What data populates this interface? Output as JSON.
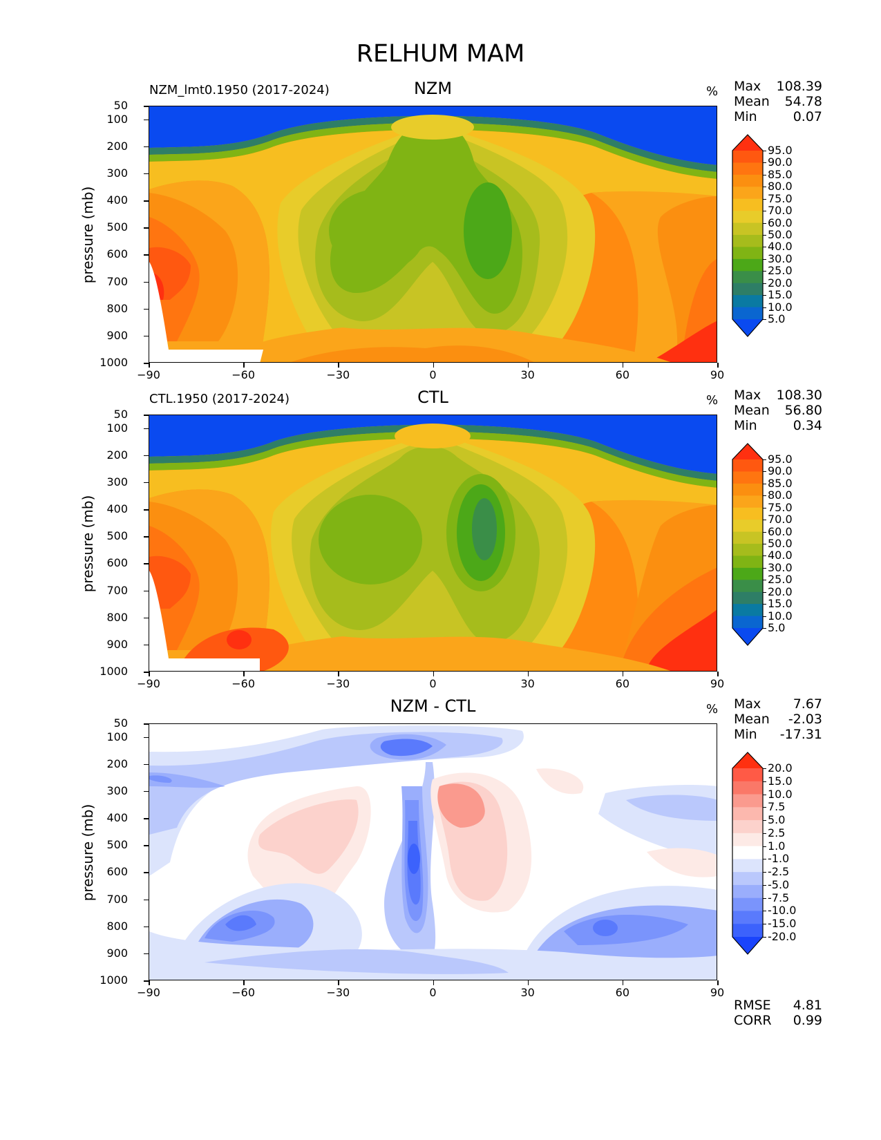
{
  "figure_title": "RELHUM MAM",
  "chart_data": [
    {
      "type": "heatmap",
      "title": "NZM",
      "left_title": "NZM_lmt0.1950 (2017-2024)",
      "units": "%",
      "xlabel": "",
      "ylabel": "pressure (mb)",
      "xlim": [
        -90,
        90
      ],
      "ylim": [
        1000,
        50
      ],
      "x_ticks": [
        "−90",
        "−60",
        "−30",
        "0",
        "30",
        "60",
        "90"
      ],
      "x_tick_values": [
        -90,
        -60,
        -30,
        0,
        30,
        60,
        90
      ],
      "y_ticks": [
        "50",
        "100",
        "200",
        "300",
        "400",
        "500",
        "600",
        "700",
        "800",
        "900",
        "1000"
      ],
      "y_tick_values": [
        50,
        100,
        200,
        300,
        400,
        500,
        600,
        700,
        800,
        900,
        1000
      ],
      "stats": [
        {
          "label": "Max",
          "value": "108.39"
        },
        {
          "label": "Mean",
          "value": "54.78"
        },
        {
          "label": "Min",
          "value": "0.07"
        }
      ],
      "colorbar_levels": [
        "95.0",
        "90.0",
        "85.0",
        "80.0",
        "75.0",
        "70.0",
        "60.0",
        "50.0",
        "40.0",
        "30.0",
        "25.0",
        "20.0",
        "15.0",
        "10.0",
        "5.0"
      ],
      "colorbar_colors": [
        "#ff3010",
        "#ff5810",
        "#ff7510",
        "#fb8f10",
        "#fba51a",
        "#f7be20",
        "#e8cc2a",
        "#c8c424",
        "#a6bc1c",
        "#80b414",
        "#4ca818",
        "#3a8e48",
        "#2e7e66",
        "#0a7aa2",
        "#0a66d0",
        "#0a4af0"
      ]
    },
    {
      "type": "heatmap",
      "title": "CTL",
      "left_title": "CTL.1950 (2017-2024)",
      "units": "%",
      "xlabel": "",
      "ylabel": "pressure (mb)",
      "xlim": [
        -90,
        90
      ],
      "ylim": [
        1000,
        50
      ],
      "x_ticks": [
        "−90",
        "−60",
        "−30",
        "0",
        "30",
        "60",
        "90"
      ],
      "x_tick_values": [
        -90,
        -60,
        -30,
        0,
        30,
        60,
        90
      ],
      "y_ticks": [
        "50",
        "100",
        "200",
        "300",
        "400",
        "500",
        "600",
        "700",
        "800",
        "900",
        "1000"
      ],
      "y_tick_values": [
        50,
        100,
        200,
        300,
        400,
        500,
        600,
        700,
        800,
        900,
        1000
      ],
      "stats": [
        {
          "label": "Max",
          "value": "108.30"
        },
        {
          "label": "Mean",
          "value": "56.80"
        },
        {
          "label": "Min",
          "value": "0.34"
        }
      ],
      "colorbar_levels": [
        "95.0",
        "90.0",
        "85.0",
        "80.0",
        "75.0",
        "70.0",
        "60.0",
        "50.0",
        "40.0",
        "30.0",
        "25.0",
        "20.0",
        "15.0",
        "10.0",
        "5.0"
      ],
      "colorbar_colors": [
        "#ff3010",
        "#ff5810",
        "#ff7510",
        "#fb8f10",
        "#fba51a",
        "#f7be20",
        "#e8cc2a",
        "#c8c424",
        "#a6bc1c",
        "#80b414",
        "#4ca818",
        "#3a8e48",
        "#2e7e66",
        "#0a7aa2",
        "#0a66d0",
        "#0a4af0"
      ]
    },
    {
      "type": "heatmap",
      "title": "NZM - CTL",
      "left_title": "",
      "units": "%",
      "xlabel": "",
      "ylabel": "pressure (mb)",
      "xlim": [
        -90,
        90
      ],
      "ylim": [
        1000,
        50
      ],
      "x_ticks": [
        "−90",
        "−60",
        "−30",
        "0",
        "30",
        "60",
        "90"
      ],
      "x_tick_values": [
        -90,
        -60,
        -30,
        0,
        30,
        60,
        90
      ],
      "y_ticks": [
        "50",
        "100",
        "200",
        "300",
        "400",
        "500",
        "600",
        "700",
        "800",
        "900",
        "1000"
      ],
      "y_tick_values": [
        50,
        100,
        200,
        300,
        400,
        500,
        600,
        700,
        800,
        900,
        1000
      ],
      "stats": [
        {
          "label": "Max",
          "value": "7.67"
        },
        {
          "label": "Mean",
          "value": "-2.03"
        },
        {
          "label": "Min",
          "value": "-17.31"
        }
      ],
      "extra_stats": [
        {
          "label": "RMSE",
          "value": "4.81"
        },
        {
          "label": "CORR",
          "value": "0.99"
        }
      ],
      "colorbar_levels": [
        "20.0",
        "15.0",
        "10.0",
        "7.5",
        "5.0",
        "2.5",
        "1.0",
        "-1.0",
        "-2.5",
        "-5.0",
        "-7.5",
        "-10.0",
        "-15.0",
        "-20.0"
      ],
      "colorbar_colors": [
        "#ff3010",
        "#ff5a46",
        "#fa7868",
        "#fa9a8e",
        "#fcb8ae",
        "#fcd2cc",
        "#fdeae6",
        "#ffffff",
        "#dce4fc",
        "#bac8fc",
        "#9aaefc",
        "#7a94fc",
        "#5a7afc",
        "#3c62fc",
        "#1a44fc"
      ]
    }
  ]
}
